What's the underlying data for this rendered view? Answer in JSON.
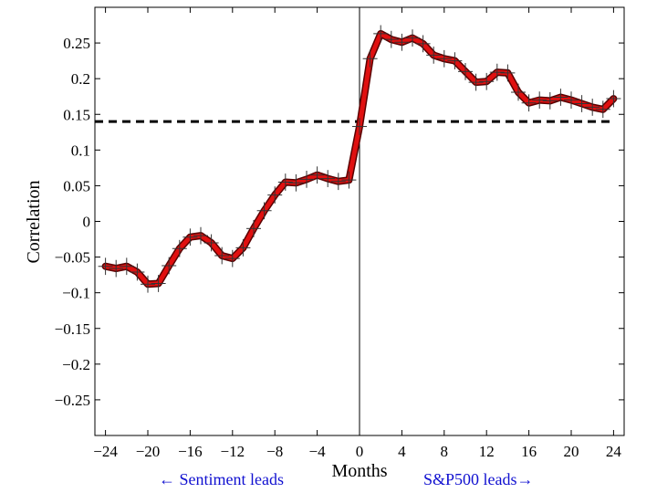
{
  "chart_data": {
    "type": "line",
    "title": "",
    "xlabel": "Months",
    "ylabel": "Correlation",
    "xlim": [
      -25,
      25
    ],
    "ylim": [
      -0.3,
      0.3
    ],
    "grid": false,
    "x_ticks": [
      -24,
      -20,
      -16,
      -12,
      -8,
      -4,
      0,
      4,
      8,
      12,
      16,
      20,
      24
    ],
    "x_tick_labels": [
      "−24",
      "−20",
      "−16",
      "−12",
      "−8",
      "−4",
      "0",
      "4",
      "8",
      "12",
      "16",
      "20",
      "24"
    ],
    "y_ticks": [
      0.25,
      0.2,
      0.15,
      0.1,
      0.05,
      0,
      -0.05,
      -0.1,
      -0.15,
      -0.2,
      -0.25
    ],
    "y_tick_labels": [
      "0.25",
      "0.2",
      "0.15",
      "0.1",
      "0.05",
      "0",
      "−0.05",
      "−0.1",
      "−0.15",
      "−0.2",
      "−0.25"
    ],
    "zero_line_x": 0,
    "threshold": 0.14,
    "error_bar": 0.012,
    "x": [
      -24,
      -23,
      -22,
      -21,
      -20,
      -19,
      -18,
      -17,
      -16,
      -15,
      -14,
      -13,
      -12,
      -11,
      -10,
      -9,
      -8,
      -7,
      -6,
      -5,
      -4,
      -3,
      -2,
      -1,
      0,
      1,
      2,
      3,
      4,
      5,
      6,
      7,
      8,
      9,
      10,
      11,
      12,
      13,
      14,
      15,
      16,
      17,
      18,
      19,
      20,
      21,
      22,
      23,
      24
    ],
    "series": [
      {
        "values": [
          -0.063,
          -0.066,
          -0.063,
          -0.071,
          -0.088,
          -0.087,
          -0.062,
          -0.038,
          -0.022,
          -0.02,
          -0.03,
          -0.048,
          -0.052,
          -0.037,
          -0.01,
          0.015,
          0.037,
          0.055,
          0.054,
          0.059,
          0.065,
          0.06,
          0.056,
          0.058,
          0.133,
          0.228,
          0.263,
          0.255,
          0.251,
          0.257,
          0.249,
          0.233,
          0.228,
          0.225,
          0.21,
          0.195,
          0.196,
          0.209,
          0.208,
          0.181,
          0.166,
          0.17,
          0.169,
          0.174,
          0.17,
          0.165,
          0.16,
          0.157,
          0.172
        ],
        "color": "#e01010"
      }
    ],
    "annotations": [
      {
        "text": "← Sentiment leads"
      },
      {
        "text": "S&P500 leads→"
      }
    ]
  }
}
